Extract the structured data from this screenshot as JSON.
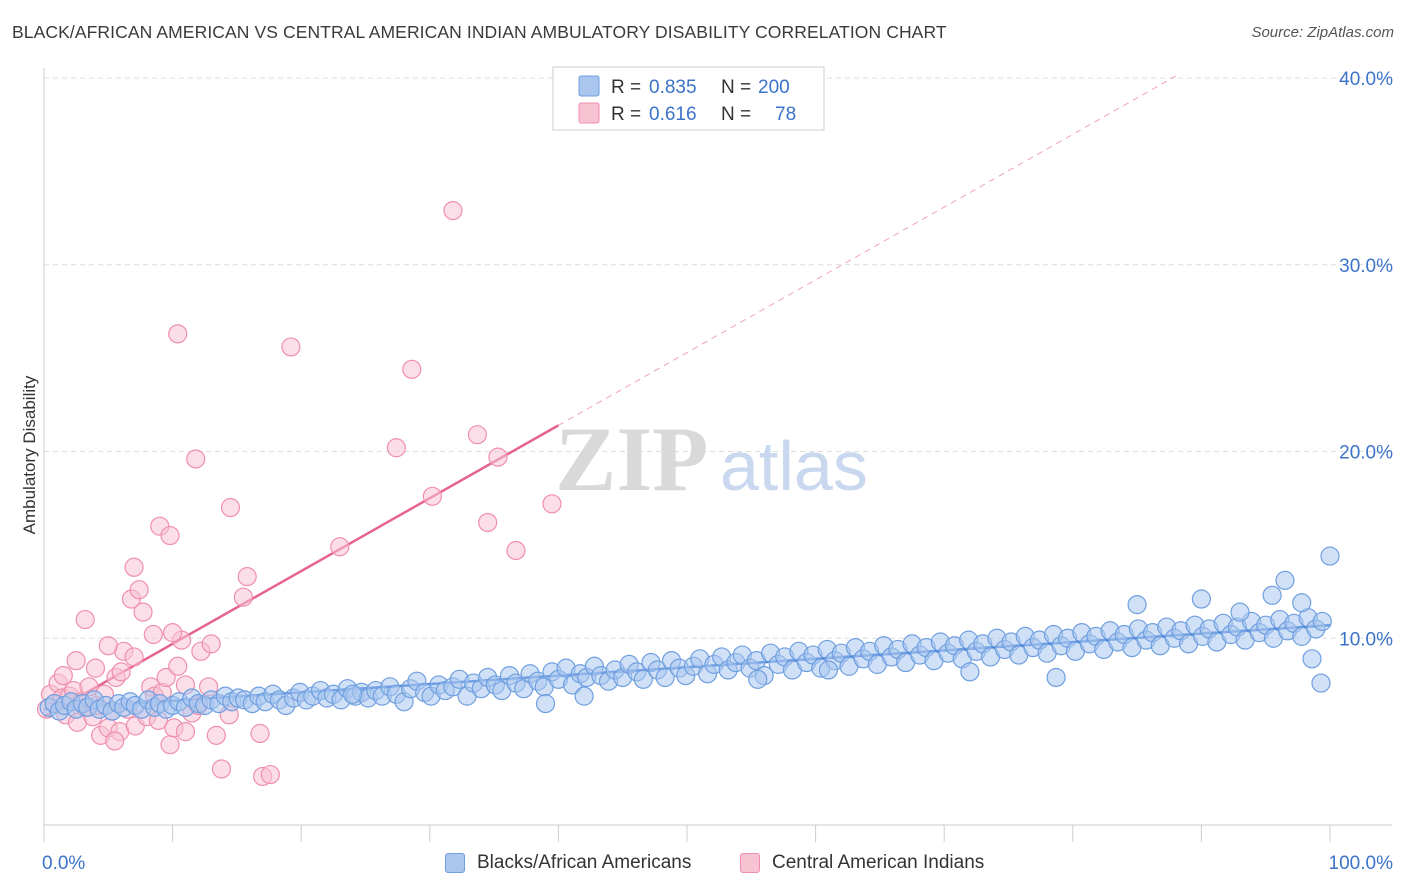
{
  "title": "BLACK/AFRICAN AMERICAN VS CENTRAL AMERICAN INDIAN AMBULATORY DISABILITY CORRELATION CHART",
  "source": "Source: ZipAtlas.com",
  "watermark": {
    "zip": "ZIP",
    "atlas": "atlas"
  },
  "colors": {
    "blue": "#6f9fe0",
    "blue_fill": "#aac6ee",
    "blue_line": "#2c6fd6",
    "pink": "#ef8faf",
    "pink_fill": "#f7c3d3",
    "pink_line": "#e5648f",
    "axis_text": "#3b73c9",
    "grid": "#dddddd"
  },
  "legend_top": [
    {
      "r_label": "R =",
      "r_value": "0.835",
      "n_label": "N =",
      "n_value": "200"
    },
    {
      "r_label": "R =",
      "r_value": "0.616",
      "n_label": "N =",
      "n_value": "78"
    }
  ],
  "legend_bottom": [
    "Blacks/African Americans",
    "Central American Indians"
  ],
  "chart_data": {
    "type": "scatter",
    "xlabel": "",
    "ylabel": "Ambulatory Disability",
    "xlim": [
      0,
      100
    ],
    "ylim": [
      0,
      40
    ],
    "x_tick_labels": [
      "0.0%",
      "100.0%"
    ],
    "y_ticks": [
      10,
      20,
      30,
      40
    ],
    "y_tick_labels": [
      "10.0%",
      "20.0%",
      "30.0%",
      "40.0%"
    ],
    "grid": "horizontal dashed",
    "series": [
      {
        "name": "Blacks/African Americans",
        "color": "#6f9fe0",
        "trend": {
          "x": [
            0,
            100
          ],
          "y": [
            6.2,
            10.7
          ]
        },
        "points": [
          [
            0.4,
            6.3
          ],
          [
            0.8,
            6.5
          ],
          [
            1.2,
            6.1
          ],
          [
            1.6,
            6.4
          ],
          [
            2.1,
            6.6
          ],
          [
            2.5,
            6.2
          ],
          [
            3.0,
            6.5
          ],
          [
            3.4,
            6.3
          ],
          [
            3.9,
            6.7
          ],
          [
            4.3,
            6.2
          ],
          [
            4.8,
            6.4
          ],
          [
            5.3,
            6.1
          ],
          [
            5.8,
            6.5
          ],
          [
            6.2,
            6.3
          ],
          [
            6.7,
            6.6
          ],
          [
            7.1,
            6.4
          ],
          [
            7.6,
            6.2
          ],
          [
            8.1,
            6.7
          ],
          [
            8.6,
            6.3
          ],
          [
            9.0,
            6.5
          ],
          [
            9.5,
            6.2
          ],
          [
            10.0,
            6.4
          ],
          [
            10.5,
            6.6
          ],
          [
            11.0,
            6.3
          ],
          [
            11.5,
            6.8
          ],
          [
            12.0,
            6.5
          ],
          [
            12.5,
            6.4
          ],
          [
            13.0,
            6.7
          ],
          [
            13.6,
            6.5
          ],
          [
            14.1,
            6.9
          ],
          [
            14.6,
            6.6
          ],
          [
            15.1,
            6.8
          ],
          [
            15.6,
            6.7
          ],
          [
            16.2,
            6.5
          ],
          [
            16.7,
            6.9
          ],
          [
            17.2,
            6.6
          ],
          [
            17.8,
            7.0
          ],
          [
            18.3,
            6.7
          ],
          [
            18.8,
            6.4
          ],
          [
            19.4,
            6.8
          ],
          [
            19.9,
            7.1
          ],
          [
            20.4,
            6.7
          ],
          [
            20.9,
            6.9
          ],
          [
            21.5,
            7.2
          ],
          [
            22.0,
            6.8
          ],
          [
            22.5,
            7.0
          ],
          [
            23.1,
            6.7
          ],
          [
            23.6,
            7.3
          ],
          [
            24.2,
            6.9
          ],
          [
            24.7,
            7.1
          ],
          [
            25.2,
            6.8
          ],
          [
            25.8,
            7.2
          ],
          [
            26.3,
            6.9
          ],
          [
            26.9,
            7.4
          ],
          [
            27.4,
            7.0
          ],
          [
            28.0,
            6.6
          ],
          [
            28.5,
            7.3
          ],
          [
            29.0,
            7.7
          ],
          [
            29.6,
            7.1
          ],
          [
            30.1,
            6.9
          ],
          [
            30.7,
            7.5
          ],
          [
            31.2,
            7.2
          ],
          [
            31.8,
            7.4
          ],
          [
            32.3,
            7.8
          ],
          [
            32.9,
            6.9
          ],
          [
            33.4,
            7.6
          ],
          [
            34.0,
            7.3
          ],
          [
            34.5,
            7.9
          ],
          [
            35.1,
            7.5
          ],
          [
            35.6,
            7.2
          ],
          [
            36.2,
            8.0
          ],
          [
            36.7,
            7.6
          ],
          [
            37.3,
            7.3
          ],
          [
            37.8,
            8.1
          ],
          [
            38.4,
            7.7
          ],
          [
            38.9,
            7.4
          ],
          [
            39.5,
            8.2
          ],
          [
            40.0,
            7.8
          ],
          [
            40.6,
            8.4
          ],
          [
            41.1,
            7.5
          ],
          [
            41.7,
            8.1
          ],
          [
            42.2,
            7.9
          ],
          [
            42.8,
            8.5
          ],
          [
            43.3,
            8.0
          ],
          [
            43.9,
            7.7
          ],
          [
            44.4,
            8.3
          ],
          [
            45.0,
            7.9
          ],
          [
            45.5,
            8.6
          ],
          [
            46.1,
            8.2
          ],
          [
            46.6,
            7.8
          ],
          [
            47.2,
            8.7
          ],
          [
            47.7,
            8.3
          ],
          [
            48.3,
            7.9
          ],
          [
            48.8,
            8.8
          ],
          [
            49.4,
            8.4
          ],
          [
            49.9,
            8.0
          ],
          [
            50.5,
            8.5
          ],
          [
            51.0,
            8.9
          ],
          [
            51.6,
            8.1
          ],
          [
            52.1,
            8.6
          ],
          [
            52.7,
            9.0
          ],
          [
            53.2,
            8.3
          ],
          [
            53.8,
            8.7
          ],
          [
            54.3,
            9.1
          ],
          [
            54.9,
            8.4
          ],
          [
            55.4,
            8.8
          ],
          [
            56.0,
            8.0
          ],
          [
            56.5,
            9.2
          ],
          [
            57.1,
            8.6
          ],
          [
            57.6,
            9.0
          ],
          [
            58.2,
            8.3
          ],
          [
            58.7,
            9.3
          ],
          [
            59.3,
            8.7
          ],
          [
            59.8,
            9.1
          ],
          [
            60.4,
            8.4
          ],
          [
            60.9,
            9.4
          ],
          [
            61.5,
            8.8
          ],
          [
            62.0,
            9.2
          ],
          [
            62.6,
            8.5
          ],
          [
            63.1,
            9.5
          ],
          [
            63.7,
            8.9
          ],
          [
            64.2,
            9.3
          ],
          [
            64.8,
            8.6
          ],
          [
            65.3,
            9.6
          ],
          [
            65.9,
            9.0
          ],
          [
            66.4,
            9.4
          ],
          [
            67.0,
            8.7
          ],
          [
            67.5,
            9.7
          ],
          [
            68.1,
            9.1
          ],
          [
            68.6,
            9.5
          ],
          [
            69.2,
            8.8
          ],
          [
            69.7,
            9.8
          ],
          [
            70.3,
            9.2
          ],
          [
            70.8,
            9.6
          ],
          [
            71.4,
            8.9
          ],
          [
            71.9,
            9.9
          ],
          [
            72.5,
            9.3
          ],
          [
            73.0,
            9.7
          ],
          [
            73.6,
            9.0
          ],
          [
            74.1,
            10.0
          ],
          [
            74.7,
            9.4
          ],
          [
            75.2,
            9.8
          ],
          [
            75.8,
            9.1
          ],
          [
            76.3,
            10.1
          ],
          [
            76.9,
            9.5
          ],
          [
            77.4,
            9.9
          ],
          [
            78.0,
            9.2
          ],
          [
            78.5,
            10.2
          ],
          [
            79.1,
            9.6
          ],
          [
            79.6,
            10.0
          ],
          [
            80.2,
            9.3
          ],
          [
            80.7,
            10.3
          ],
          [
            81.3,
            9.7
          ],
          [
            81.8,
            10.1
          ],
          [
            82.4,
            9.4
          ],
          [
            82.9,
            10.4
          ],
          [
            83.5,
            9.8
          ],
          [
            84.0,
            10.2
          ],
          [
            84.6,
            9.5
          ],
          [
            85.1,
            10.5
          ],
          [
            85.7,
            9.9
          ],
          [
            86.2,
            10.3
          ],
          [
            86.8,
            9.6
          ],
          [
            87.3,
            10.6
          ],
          [
            87.9,
            10.0
          ],
          [
            88.4,
            10.4
          ],
          [
            89.0,
            9.7
          ],
          [
            89.5,
            10.7
          ],
          [
            90.1,
            10.1
          ],
          [
            90.6,
            10.5
          ],
          [
            91.2,
            9.8
          ],
          [
            91.7,
            10.8
          ],
          [
            92.3,
            10.2
          ],
          [
            92.8,
            10.6
          ],
          [
            93.4,
            9.9
          ],
          [
            93.9,
            10.9
          ],
          [
            94.5,
            10.3
          ],
          [
            95.0,
            10.7
          ],
          [
            95.6,
            10.0
          ],
          [
            96.1,
            11.0
          ],
          [
            96.7,
            10.4
          ],
          [
            97.2,
            10.8
          ],
          [
            97.8,
            10.1
          ],
          [
            98.3,
            11.1
          ],
          [
            98.9,
            10.5
          ],
          [
            99.4,
            10.9
          ],
          [
            24.0,
            7.0
          ],
          [
            39.0,
            6.5
          ],
          [
            42.0,
            6.9
          ],
          [
            55.5,
            7.8
          ],
          [
            61.0,
            8.3
          ],
          [
            72.0,
            8.2
          ],
          [
            78.7,
            7.9
          ],
          [
            85.0,
            11.8
          ],
          [
            90.0,
            12.1
          ],
          [
            93.0,
            11.4
          ],
          [
            95.5,
            12.3
          ],
          [
            96.5,
            13.1
          ],
          [
            97.8,
            11.9
          ],
          [
            98.6,
            8.9
          ],
          [
            99.3,
            7.6
          ],
          [
            100.0,
            14.4
          ]
        ]
      },
      {
        "name": "Central American Indians",
        "color": "#ef8faf",
        "trend": {
          "x": [
            0,
            40
          ],
          "y": [
            5.8,
            21.4
          ]
        },
        "trend_extension": {
          "x": [
            40,
            88
          ],
          "y": [
            21.4,
            40.1
          ]
        },
        "points": [
          [
            0.2,
            6.2
          ],
          [
            0.5,
            7.0
          ],
          [
            0.8,
            6.5
          ],
          [
            1.1,
            7.6
          ],
          [
            1.4,
            6.8
          ],
          [
            1.7,
            5.9
          ],
          [
            2.0,
            6.9
          ],
          [
            2.3,
            7.2
          ],
          [
            2.6,
            5.5
          ],
          [
            2.9,
            6.6
          ],
          [
            3.2,
            6.3
          ],
          [
            3.5,
            7.4
          ],
          [
            3.8,
            5.8
          ],
          [
            4.1,
            6.4
          ],
          [
            4.4,
            4.8
          ],
          [
            4.7,
            7.0
          ],
          [
            5.0,
            5.2
          ],
          [
            5.3,
            6.1
          ],
          [
            5.6,
            7.9
          ],
          [
            5.9,
            5.0
          ],
          [
            6.2,
            9.3
          ],
          [
            6.5,
            6.2
          ],
          [
            6.8,
            12.1
          ],
          [
            7.1,
            5.3
          ],
          [
            7.4,
            12.6
          ],
          [
            7.7,
            11.4
          ],
          [
            8.0,
            5.8
          ],
          [
            8.3,
            7.4
          ],
          [
            8.6,
            6.9
          ],
          [
            8.9,
            5.6
          ],
          [
            9.2,
            7.1
          ],
          [
            9.5,
            7.9
          ],
          [
            9.8,
            4.3
          ],
          [
            10.1,
            5.2
          ],
          [
            10.4,
            8.5
          ],
          [
            10.7,
            9.9
          ],
          [
            11.0,
            5.0
          ],
          [
            11.5,
            6.0
          ],
          [
            12.0,
            6.4
          ],
          [
            12.8,
            7.4
          ],
          [
            13.4,
            4.8
          ],
          [
            13.8,
            3.0
          ],
          [
            14.4,
            5.9
          ],
          [
            10.0,
            10.3
          ],
          [
            9.0,
            16.0
          ],
          [
            8.5,
            10.2
          ],
          [
            7.0,
            13.8
          ],
          [
            3.2,
            11.0
          ],
          [
            11.8,
            19.6
          ],
          [
            14.5,
            17.0
          ],
          [
            15.5,
            12.2
          ],
          [
            15.8,
            13.3
          ],
          [
            16.8,
            4.9
          ],
          [
            17.0,
            2.6
          ],
          [
            17.6,
            2.7
          ],
          [
            19.2,
            25.6
          ],
          [
            23.0,
            14.9
          ],
          [
            27.4,
            20.2
          ],
          [
            28.6,
            24.4
          ],
          [
            30.2,
            17.6
          ],
          [
            33.7,
            20.9
          ],
          [
            34.5,
            16.2
          ],
          [
            35.3,
            19.7
          ],
          [
            39.5,
            17.2
          ],
          [
            36.7,
            14.7
          ],
          [
            31.8,
            32.9
          ],
          [
            10.4,
            26.3
          ],
          [
            9.8,
            15.5
          ],
          [
            12.2,
            9.3
          ],
          [
            7.0,
            9.0
          ],
          [
            6.0,
            8.2
          ],
          [
            5.0,
            9.6
          ],
          [
            4.0,
            8.4
          ],
          [
            2.5,
            8.8
          ],
          [
            1.5,
            8.0
          ],
          [
            13.0,
            9.7
          ],
          [
            11.0,
            7.5
          ],
          [
            5.5,
            4.5
          ]
        ]
      }
    ]
  }
}
